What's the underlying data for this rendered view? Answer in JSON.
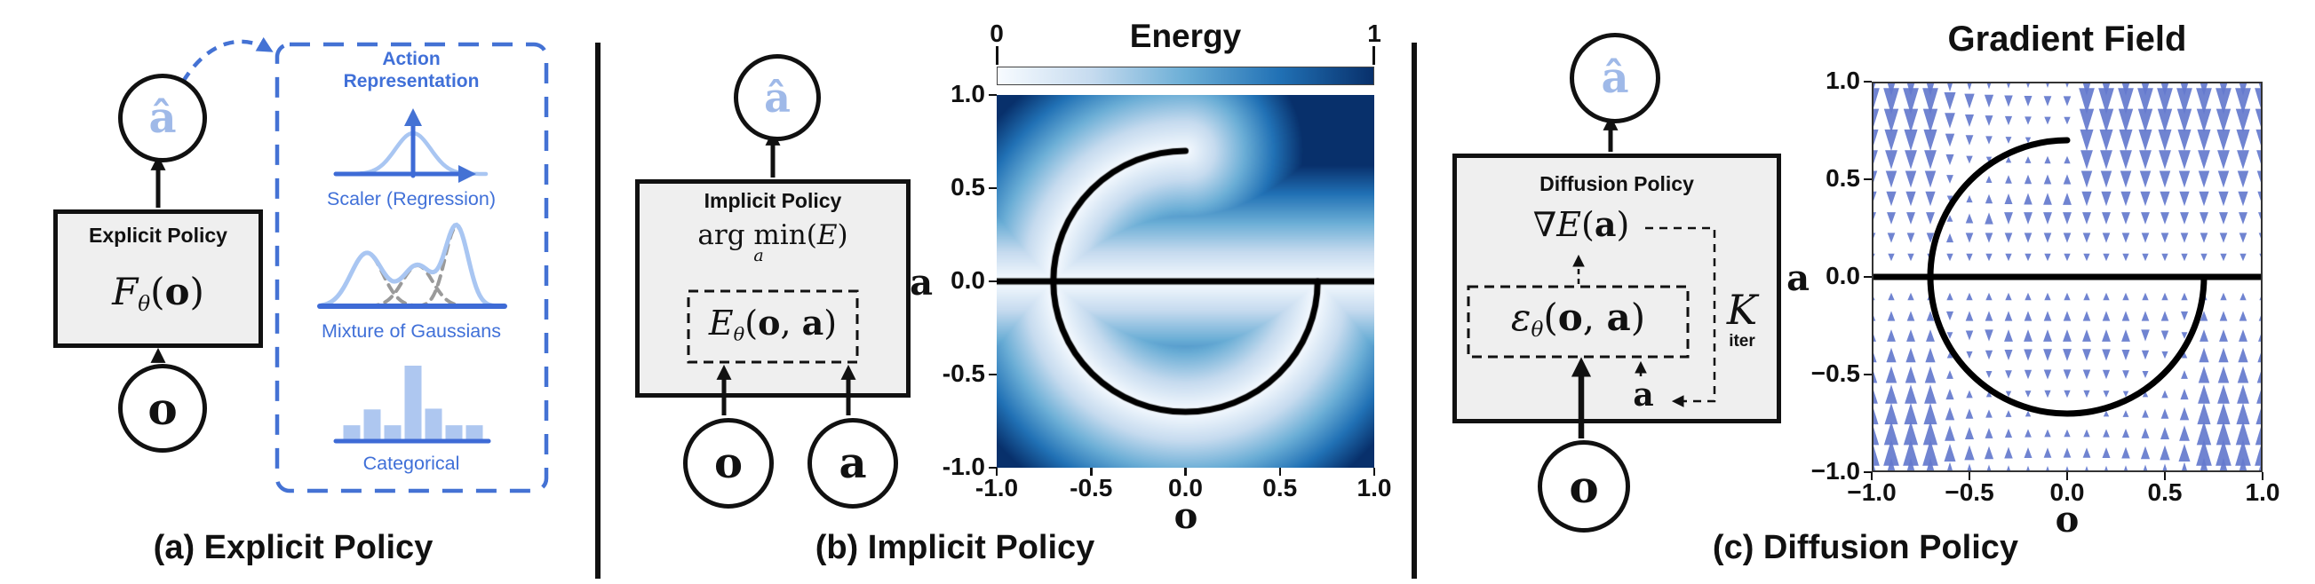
{
  "figure": {
    "panels": {
      "a": {
        "caption": "(a) Explicit Policy",
        "nodes": {
          "a_hat": "â",
          "o": "o"
        },
        "policy_box": {
          "title": "Explicit Policy",
          "formula": {
            "name": "F",
            "sub": "θ",
            "open": "(",
            "arg1": "o",
            "close": ")"
          }
        },
        "action_representation": {
          "title_line1": "Action",
          "title_line2": "Representation",
          "items": [
            {
              "type": "gaussian",
              "label": "Scaler (Regression)"
            },
            {
              "type": "mixture_of_gaussians",
              "label": "Mixture of Gaussians"
            },
            {
              "type": "categorical_bars",
              "label": "Categorical",
              "values": [
                0.21,
                0.42,
                0.21,
                1.0,
                0.43,
                0.21,
                0.21
              ]
            }
          ]
        }
      },
      "b": {
        "caption": "(b) Implicit Policy",
        "nodes": {
          "a_hat": "â",
          "o": "o",
          "a": "a"
        },
        "policy_box": {
          "title": "Implicit Policy",
          "argmin": {
            "pre": "arg min",
            "sub": "a",
            "open": "(",
            "arg1": "E",
            "close": ")"
          },
          "formula": {
            "name": "E",
            "sub": "θ",
            "open": "(",
            "arg1": "o",
            "sep": ", ",
            "arg2": "a",
            "close": ")"
          }
        }
      },
      "c": {
        "caption": "(c) Diffusion Policy",
        "nodes": {
          "a_hat": "â",
          "o": "o"
        },
        "policy_box": {
          "title": "Diffusion Policy",
          "gradient_formula": {
            "nabla": "∇",
            "name": "E",
            "open": "(",
            "arg1": "a",
            "close": ")"
          },
          "formula": {
            "name": "ε",
            "sub": "θ",
            "open": "(",
            "arg1": "o",
            "sep": ", ",
            "arg2": "a",
            "close": ")"
          },
          "k_iter": {
            "k": "K",
            "label": "iter"
          },
          "loop_var": "a"
        }
      }
    },
    "colors": {
      "accent_blue": "#4472D4",
      "light_blue": "#A9C6F2",
      "node_hat_blue": "#9FB9E8",
      "box_fill": "#EFEFEF",
      "quiver_arrow": "#6479CD"
    },
    "chart_data": [
      {
        "id": "energy",
        "type": "heatmap",
        "title": "Energy",
        "xlabel": "o",
        "ylabel": "a",
        "xlim": [
          -1,
          1
        ],
        "ylim": [
          -1,
          1
        ],
        "x_tick_labels": [
          "-1.0",
          "-0.5",
          "0.0",
          "0.5",
          "1.0"
        ],
        "y_tick_labels": [
          "1.0",
          "0.5",
          "0.0",
          "-0.5",
          "-1.0"
        ],
        "colorbar": {
          "position": "top",
          "tick_labels": [
            "0",
            "1"
          ]
        },
        "colormap_stops": [
          [
            0,
            "#F7FBFF"
          ],
          [
            0.25,
            "#C6DBEF"
          ],
          [
            0.5,
            "#6BAED6"
          ],
          [
            0.75,
            "#2171B5"
          ],
          [
            1,
            "#08306B"
          ]
        ],
        "heat_scale": 1.6,
        "manifold": {
          "shape": "three-quarter circle arc plus horizontal line",
          "circle_radius": 0.7,
          "arc_deg": [
            90,
            360
          ],
          "line_a": 0.0,
          "color": "#000000"
        }
      },
      {
        "id": "gradient_field",
        "type": "quiver",
        "title": "Gradient Field",
        "xlabel": "o",
        "ylabel": "a",
        "xlim": [
          -1,
          1
        ],
        "ylim": [
          -1,
          1
        ],
        "x_tick_labels": [
          "−1.0",
          "−0.5",
          "0.0",
          "0.5",
          "1.0"
        ],
        "y_tick_labels": [
          "1.0",
          "0.5",
          "0.0",
          "−0.5",
          "−1.0"
        ],
        "grid_step": 0.1,
        "arrow_rule": "vertical arrow toward nearest manifold branch, size proportional to distance",
        "manifold": {
          "shape": "three-quarter circle arc plus horizontal line",
          "circle_radius": 0.7,
          "arc_deg": [
            90,
            360
          ],
          "line_a": 0.0,
          "color": "#000000"
        }
      }
    ]
  }
}
